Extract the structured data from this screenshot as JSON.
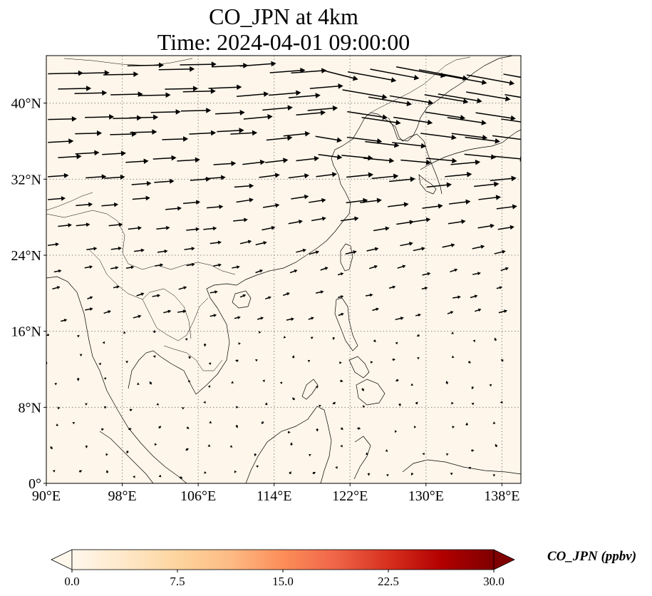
{
  "title": {
    "line1": "CO_JPN at 4km",
    "line2": "Time: 2024-04-01 09:00:00"
  },
  "map": {
    "lon_range": [
      90,
      140
    ],
    "lat_range": [
      0,
      45
    ],
    "lon_ticks": [
      90,
      98,
      106,
      114,
      122,
      130,
      138
    ],
    "lon_tick_labels": [
      "90°E",
      "98°E",
      "106°E",
      "114°E",
      "122°E",
      "130°E",
      "138°E"
    ],
    "lat_ticks": [
      0,
      8,
      16,
      24,
      32,
      40
    ],
    "lat_tick_labels": [
      "0°",
      "8°N",
      "16°N",
      "24°N",
      "32°N",
      "40°N"
    ],
    "gridlines": true,
    "gridline_style": "dotted",
    "background_color": "#fef6ea",
    "coastline_color": "#000000",
    "wind_vectors": "black arrows, strong westerlies north of 22°N, weak variable flow in the tropics"
  },
  "colorbar": {
    "label": "CO_JPN (ppbv)",
    "min": 0.0,
    "max": 30.0,
    "ticks": [
      "0.0",
      "7.5",
      "15.0",
      "22.5",
      "30.0"
    ],
    "colormap": "OrRd",
    "extend": "both",
    "colors": [
      "#fff7ec",
      "#fee8c8",
      "#fdd49e",
      "#fdbb84",
      "#fc8d59",
      "#ef6548",
      "#d7301f",
      "#b30000",
      "#7f0000"
    ]
  }
}
